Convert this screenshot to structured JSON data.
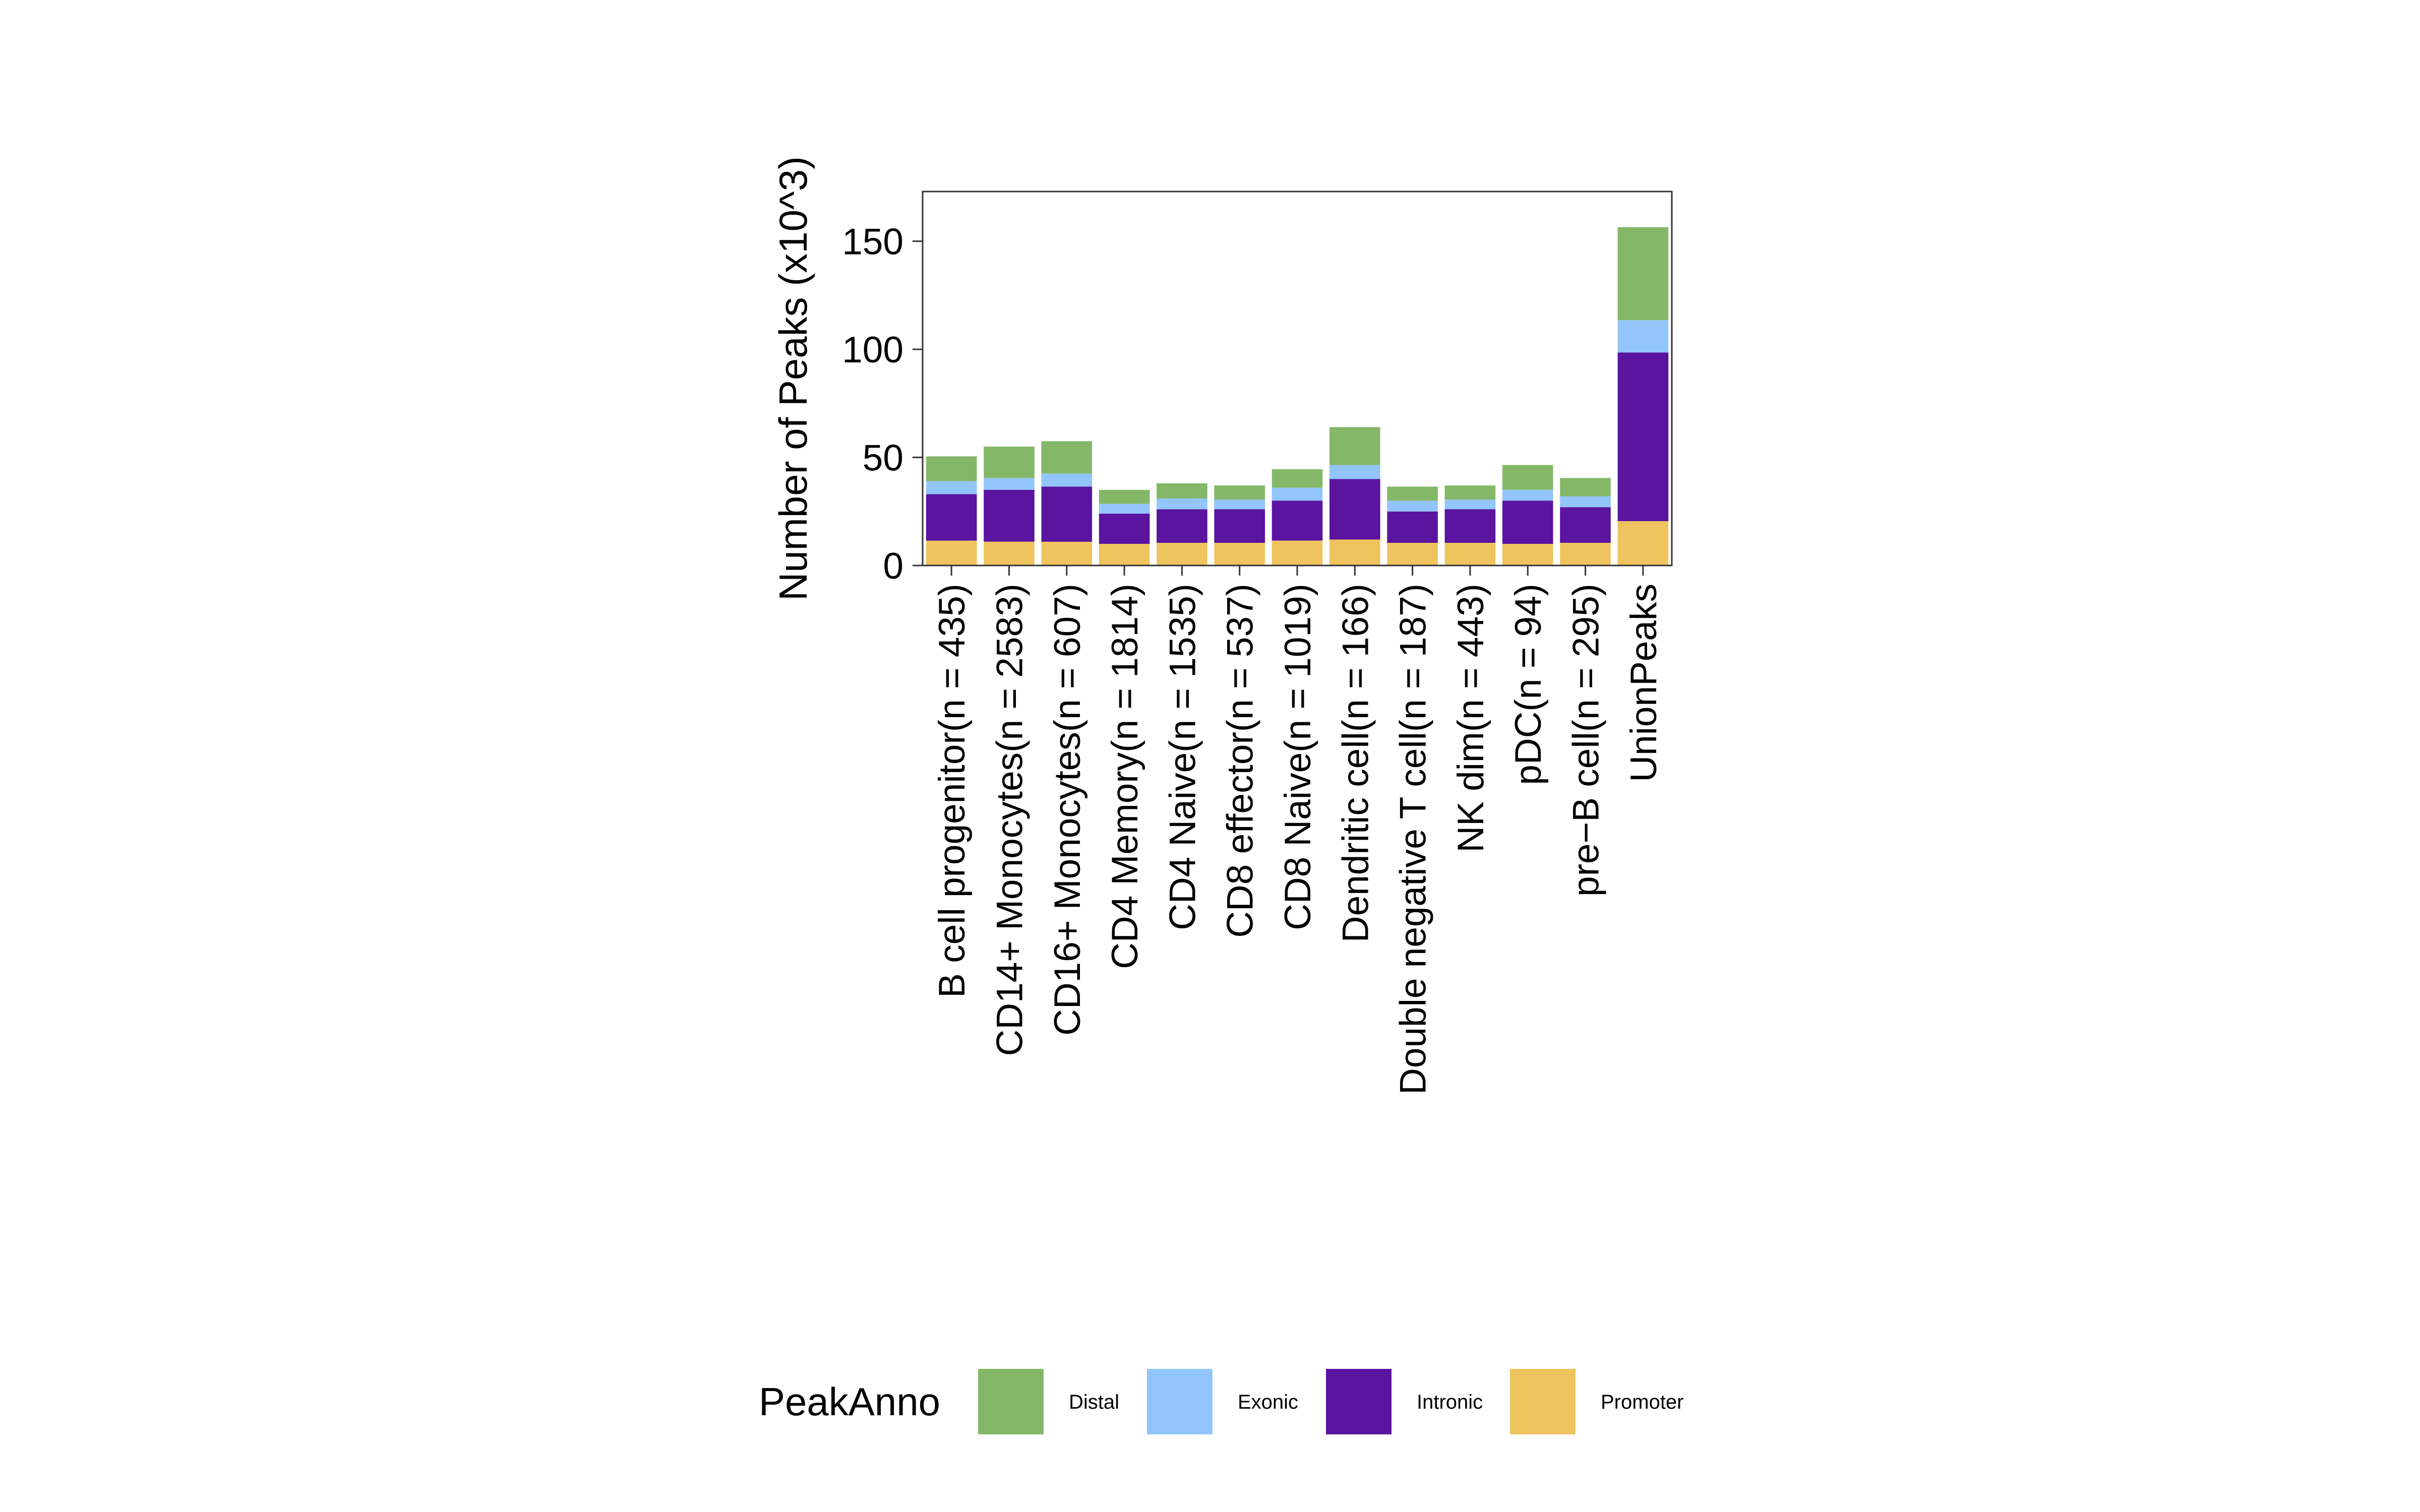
{
  "chart_data": {
    "type": "bar",
    "stacked": true,
    "title": "",
    "xlabel": "",
    "ylabel": "Number of Peaks (x10^3)",
    "ylim": [
      0,
      173
    ],
    "yticks": [
      0,
      50,
      100,
      150
    ],
    "grid": false,
    "legend_position": "bottom",
    "legend_title": "PeakAnno",
    "categories": [
      "B cell progenitor(n = 435)",
      "CD14+ Monocytes(n = 2583)",
      "CD16+ Monocytes(n = 607)",
      "CD4 Memory(n = 1814)",
      "CD4 Naive(n = 1535)",
      "CD8 effector(n = 537)",
      "CD8 Naive(n = 1019)",
      "Dendritic cell(n = 166)",
      "Double negative T cell(n = 187)",
      "NK dim(n = 443)",
      "pDC(n = 94)",
      "pre−B cell(n = 295)",
      "UnionPeaks"
    ],
    "series": [
      {
        "name": "Promoter",
        "color": "#EFC45E",
        "values": [
          11.5,
          11,
          11,
          10,
          10.5,
          10.5,
          11.5,
          12,
          10.5,
          10.5,
          10,
          10.5,
          20.5
        ]
      },
      {
        "name": "Intronic",
        "color": "#5A14A0",
        "values": [
          21.5,
          24,
          25.5,
          14,
          15.5,
          15.5,
          18.5,
          28,
          14.5,
          15.5,
          20,
          16.5,
          78
        ]
      },
      {
        "name": "Exonic",
        "color": "#92C5FB",
        "values": [
          6,
          5.5,
          6,
          4.5,
          5,
          4.5,
          6,
          6.5,
          5,
          4.5,
          5,
          5,
          15
        ]
      },
      {
        "name": "Distal",
        "color": "#84B868",
        "values": [
          11.5,
          14.5,
          15,
          6.5,
          7,
          6.5,
          8.5,
          17.5,
          6.5,
          6.5,
          11.5,
          8.5,
          43
        ]
      }
    ],
    "legend_order": [
      "Distal",
      "Exonic",
      "Intronic",
      "Promoter"
    ]
  }
}
